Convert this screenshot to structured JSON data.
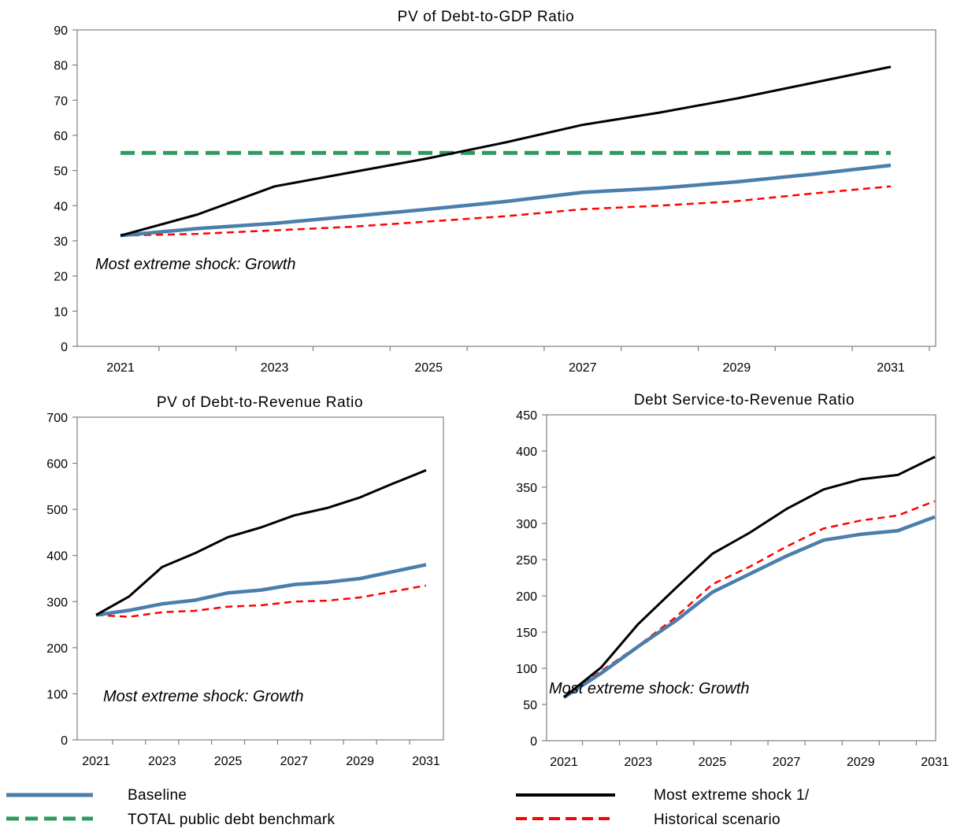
{
  "colors": {
    "baseline": "#4a7eab",
    "shock": "#000000",
    "historical": "#ff0000",
    "benchmark": "#2e9a5c",
    "axis": "#808080"
  },
  "legend": [
    {
      "key": "baseline",
      "label": "Baseline",
      "style": "solid"
    },
    {
      "key": "shock",
      "label": "Most extreme shock 1/",
      "style": "solid"
    },
    {
      "key": "benchmark",
      "label": "TOTAL public debt benchmark",
      "style": "dashed"
    },
    {
      "key": "historical",
      "label": "Historical scenario",
      "style": "dashed"
    }
  ],
  "chart_data": [
    {
      "type": "line",
      "title": "PV of Debt-to-GDP Ratio",
      "annotation": "Most extreme shock: Growth",
      "x": [
        2021,
        2022,
        2023,
        2024,
        2025,
        2026,
        2027,
        2028,
        2029,
        2030,
        2031
      ],
      "tick_labels": [
        "2021",
        "2023",
        "2025",
        "2027",
        "2029",
        "2031"
      ],
      "ylim": [
        0,
        90
      ],
      "yticks": [
        0,
        10,
        20,
        30,
        40,
        50,
        60,
        70,
        80,
        90
      ],
      "series": [
        {
          "key": "baseline",
          "values": [
            31.5,
            33.5,
            35,
            37,
            39,
            41.2,
            43.8,
            45,
            46.8,
            49,
            51.5
          ]
        },
        {
          "key": "historical",
          "values": [
            31.5,
            32,
            33,
            34,
            35.5,
            37,
            39,
            40,
            41.3,
            43.5,
            45.5
          ]
        },
        {
          "key": "benchmark",
          "values": [
            55,
            55,
            55,
            55,
            55,
            55,
            55,
            55,
            55,
            55,
            55
          ]
        },
        {
          "key": "shock",
          "values": [
            31.5,
            37.5,
            45.5,
            49.5,
            53.5,
            58,
            63,
            66.5,
            70.5,
            75,
            79.5
          ]
        }
      ]
    },
    {
      "type": "line",
      "title": "PV of Debt-to-Revenue Ratio",
      "annotation": "Most extreme shock: Growth",
      "x": [
        2021,
        2022,
        2023,
        2024,
        2025,
        2026,
        2027,
        2028,
        2029,
        2030,
        2031
      ],
      "tick_labels": [
        "2021",
        "2023",
        "2025",
        "2027",
        "2029",
        "2031"
      ],
      "ylim": [
        0,
        700
      ],
      "yticks": [
        0,
        100,
        200,
        300,
        400,
        500,
        600,
        700
      ],
      "series": [
        {
          "key": "baseline",
          "values": [
            271,
            281,
            295,
            303,
            319,
            325,
            337,
            342,
            350,
            365,
            380
          ]
        },
        {
          "key": "historical",
          "values": [
            271,
            267,
            277,
            280,
            289,
            292,
            300,
            302,
            309,
            322,
            335
          ]
        },
        {
          "key": "shock",
          "values": [
            271,
            311,
            375,
            405,
            440,
            461,
            487,
            503,
            526,
            556,
            585
          ]
        }
      ]
    },
    {
      "type": "line",
      "title": "Debt Service-to-Revenue Ratio",
      "annotation": "Most extreme shock: Growth",
      "x": [
        2021,
        2022,
        2023,
        2024,
        2025,
        2026,
        2027,
        2028,
        2029,
        2030,
        2031
      ],
      "tick_labels": [
        "2021",
        "2023",
        "2025",
        "2027",
        "2029",
        "2031"
      ],
      "ylim": [
        0,
        450
      ],
      "yticks": [
        0,
        50,
        100,
        150,
        200,
        250,
        300,
        350,
        400,
        450
      ],
      "series": [
        {
          "key": "baseline",
          "values": [
            60,
            93,
            130,
            165,
            205,
            230,
            255,
            277,
            285,
            290,
            309
          ]
        },
        {
          "key": "historical",
          "values": [
            60,
            96,
            131,
            170,
            216,
            240,
            268,
            293,
            304,
            311,
            331
          ]
        },
        {
          "key": "shock",
          "values": [
            60,
            101,
            161,
            210,
            258,
            287,
            320,
            347,
            361,
            367,
            392
          ]
        }
      ]
    }
  ]
}
